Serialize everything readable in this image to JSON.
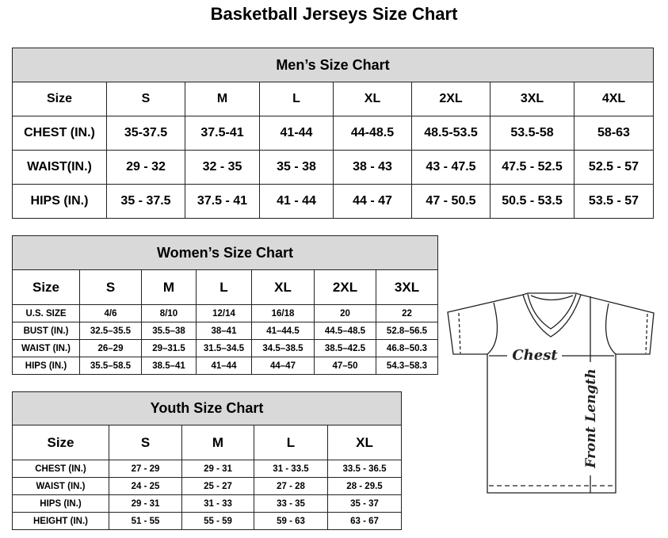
{
  "title": "Basketball Jerseys Size Chart",
  "men": {
    "caption": "Men’s Size Chart",
    "header": [
      "Size",
      "S",
      "M",
      "L",
      "XL",
      "2XL",
      "3XL",
      "4XL"
    ],
    "rows": [
      [
        "CHEST (IN.)",
        "35-37.5",
        "37.5-41",
        "41-44",
        "44-48.5",
        "48.5-53.5",
        "53.5-58",
        "58-63"
      ],
      [
        "WAIST(IN.)",
        "29 - 32",
        "32 - 35",
        "35 - 38",
        "38 - 43",
        "43 - 47.5",
        "47.5 - 52.5",
        "52.5 - 57"
      ],
      [
        "HIPS (IN.)",
        "35 - 37.5",
        "37.5 - 41",
        "41 - 44",
        "44 - 47",
        "47 - 50.5",
        "50.5 - 53.5",
        "53.5 - 57"
      ]
    ]
  },
  "women": {
    "caption": "Women’s Size Chart",
    "header": [
      "Size",
      "S",
      "M",
      "L",
      "XL",
      "2XL",
      "3XL"
    ],
    "rows": [
      [
        "U.S. SIZE",
        "4/6",
        "8/10",
        "12/14",
        "16/18",
        "20",
        "22"
      ],
      [
        "BUST (IN.)",
        "32.5–35.5",
        "35.5–38",
        "38–41",
        "41–44.5",
        "44.5–48.5",
        "52.8–56.5"
      ],
      [
        "WAIST (IN.)",
        "26–29",
        "29–31.5",
        "31.5–34.5",
        "34.5–38.5",
        "38.5–42.5",
        "46.8–50.3"
      ],
      [
        "HIPS (IN.)",
        "35.5–58.5",
        "38.5–41",
        "41–44",
        "44–47",
        "47–50",
        "54.3–58.3"
      ]
    ]
  },
  "youth": {
    "caption": "Youth Size Chart",
    "header": [
      "Size",
      "S",
      "M",
      "L",
      "XL"
    ],
    "rows": [
      [
        "CHEST (IN.)",
        "27 - 29",
        "29 - 31",
        "31 - 33.5",
        "33.5 - 36.5"
      ],
      [
        "WAIST (IN.)",
        "24 - 25",
        "25 - 27",
        "27 - 28",
        "28 - 29.5"
      ],
      [
        "HIPS (IN.)",
        "29 - 31",
        "31 - 33",
        "33 - 35",
        "35 - 37"
      ],
      [
        "HEIGHT (IN.)",
        "51 - 55",
        "55 - 59",
        "59 - 63",
        "63 - 67"
      ]
    ]
  },
  "diagram": {
    "chest_label": "Chest",
    "length_label": "Front Length"
  },
  "colors": {
    "caption_bg": "#d9d9d9",
    "line": "#231f20"
  }
}
